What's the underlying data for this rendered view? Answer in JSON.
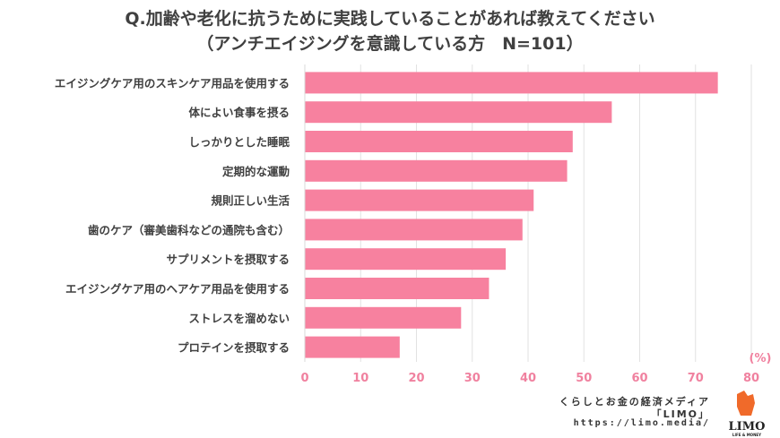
{
  "title_line1": "Q.加齢や老化に抗うために実践していることがあれば教えてください",
  "title_line2": "（アンチエイジングを意識している方　N=101）",
  "chart_data": {
    "type": "bar",
    "orientation": "horizontal",
    "categories": [
      "エイジングケア用のスキンケア用品を使用する",
      "体によい食事を摂る",
      "しっかりとした睡眠",
      "定期的な運動",
      "規則正しい生活",
      "歯のケア（審美歯科などの通院も含む）",
      "サプリメントを摂取する",
      "エイジングケア用のヘアケア用品を使用する",
      "ストレスを溜めない",
      "プロテインを摂取する"
    ],
    "values": [
      74,
      55,
      48,
      47,
      41,
      39,
      36,
      33,
      28,
      17
    ],
    "xlim": [
      0,
      80
    ],
    "xticks": [
      "0",
      "10",
      "20",
      "30",
      "40",
      "50",
      "60",
      "70",
      "80"
    ],
    "xunit": "(%)",
    "grid": true,
    "bar_color": "#f7819f",
    "tick_color": "#f0819f"
  },
  "footer": {
    "line1": "くらしとお金の経済メディア",
    "line2": "「LIMO」",
    "url": "https://limo.media/",
    "logo_text": "LIMO",
    "logo_sub": "LIFE & MONEY"
  }
}
